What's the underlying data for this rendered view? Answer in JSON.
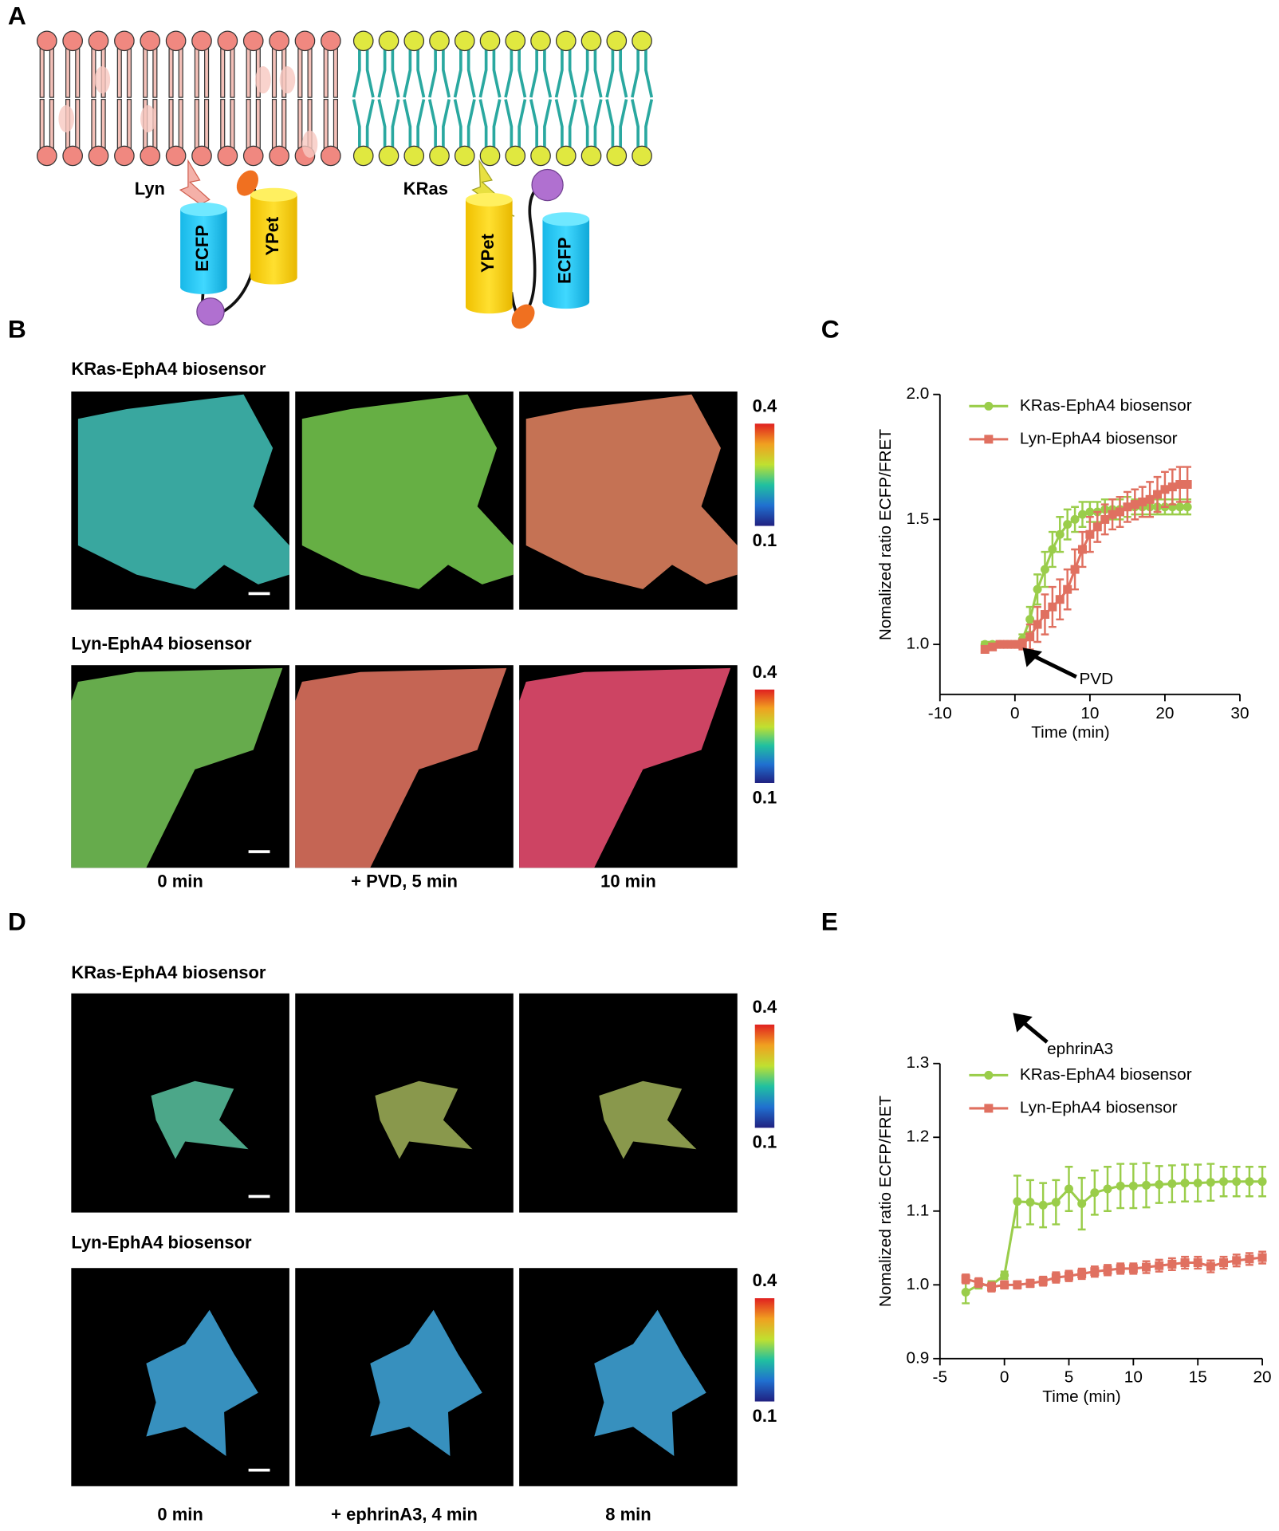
{
  "panel_labels": [
    "A",
    "B",
    "C",
    "D",
    "E"
  ],
  "diagram": {
    "anchors": [
      "Lyn",
      "KRas"
    ],
    "proteins": [
      "ECFP",
      "YPet",
      "YPet",
      "ECFP"
    ]
  },
  "imaging": [
    {
      "rows": [
        {
          "title": "KRas-EphA4 biosensor",
          "scale_max": "0.4",
          "scale_min": "0.1"
        },
        {
          "title": "Lyn-EphA4 biosensor",
          "scale_max": "0.4",
          "scale_min": "0.1"
        }
      ],
      "times": [
        "0 min",
        "+ PVD, 5 min",
        "10 min"
      ]
    },
    {
      "rows": [
        {
          "title": "KRas-EphA4 biosensor",
          "scale_max": "0.4",
          "scale_min": "0.1"
        },
        {
          "title": "Lyn-EphA4 biosensor",
          "scale_max": "0.4",
          "scale_min": "0.1"
        }
      ],
      "times": [
        "0 min",
        "+ ephrinA3, 4 min",
        "8 min"
      ]
    }
  ],
  "chart_data": [
    {
      "type": "line",
      "x_label": "Time (min)",
      "y_label": "Nomalized ratio ECFP/FRET",
      "annotation": "PVD",
      "legend": "upper left",
      "x": [
        -4,
        -3,
        -2,
        -1,
        0,
        1,
        2,
        3,
        4,
        5,
        6,
        7,
        8,
        9,
        10,
        11,
        12,
        13,
        14,
        15,
        16,
        17,
        18,
        19,
        20,
        21,
        22,
        23
      ],
      "series": [
        {
          "name": "KRas-EphA4 biosensor",
          "color": "#9acd4a",
          "marker": "circle",
          "values": [
            1.0,
            1.0,
            1.0,
            1.0,
            1.0,
            1.02,
            1.1,
            1.22,
            1.3,
            1.38,
            1.44,
            1.48,
            1.5,
            1.52,
            1.53,
            1.53,
            1.54,
            1.54,
            1.54,
            1.55,
            1.55,
            1.55,
            1.55,
            1.55,
            1.55,
            1.55,
            1.55,
            1.55
          ],
          "errors": [
            0.01,
            0.01,
            0.01,
            0.01,
            0.01,
            0.02,
            0.05,
            0.06,
            0.07,
            0.07,
            0.07,
            0.06,
            0.05,
            0.05,
            0.04,
            0.04,
            0.04,
            0.04,
            0.04,
            0.04,
            0.03,
            0.03,
            0.03,
            0.03,
            0.03,
            0.03,
            0.03,
            0.03
          ]
        },
        {
          "name": "Lyn-EphA4 biosensor",
          "color": "#e07060",
          "marker": "square",
          "values": [
            0.98,
            0.99,
            1.0,
            1.0,
            1.0,
            1.0,
            1.03,
            1.08,
            1.12,
            1.15,
            1.18,
            1.22,
            1.3,
            1.38,
            1.44,
            1.47,
            1.5,
            1.52,
            1.53,
            1.55,
            1.56,
            1.57,
            1.58,
            1.6,
            1.62,
            1.63,
            1.64,
            1.64
          ],
          "errors": [
            0.01,
            0.01,
            0.01,
            0.01,
            0.01,
            0.02,
            0.05,
            0.07,
            0.08,
            0.08,
            0.08,
            0.08,
            0.08,
            0.07,
            0.07,
            0.06,
            0.06,
            0.06,
            0.06,
            0.06,
            0.06,
            0.06,
            0.07,
            0.07,
            0.07,
            0.07,
            0.07,
            0.07
          ]
        }
      ],
      "xlim": [
        -10,
        30
      ],
      "ylim": [
        0.8,
        2.0
      ],
      "xticks": [
        -10,
        0,
        10,
        20,
        30
      ],
      "yticks": [
        {
          "value": 1.0,
          "label": "1.0"
        },
        {
          "value": 1.5,
          "label": "1.5"
        },
        {
          "value": 2.0,
          "label": "2.0"
        }
      ]
    },
    {
      "type": "line",
      "x_label": "Time (min)",
      "y_label": "Nomalized ratio ECFP/FRET",
      "annotation": "ephrinA3",
      "legend": "upper left",
      "x": [
        -3,
        -2,
        -1,
        0,
        1,
        2,
        3,
        4,
        5,
        6,
        7,
        8,
        9,
        10,
        11,
        12,
        13,
        14,
        15,
        16,
        17,
        18,
        19,
        20
      ],
      "series": [
        {
          "name": "KRas-EphA4 biosensor",
          "color": "#9acd4a",
          "marker": "circle",
          "values": [
            0.99,
            1.0,
            1.0,
            1.013,
            1.113,
            1.112,
            1.108,
            1.112,
            1.13,
            1.11,
            1.125,
            1.13,
            1.134,
            1.134,
            1.135,
            1.136,
            1.137,
            1.138,
            1.138,
            1.139,
            1.14,
            1.14,
            1.14,
            1.14
          ],
          "errors": [
            0.015,
            0.005,
            0.005,
            0.005,
            0.035,
            0.03,
            0.03,
            0.03,
            0.03,
            0.035,
            0.03,
            0.03,
            0.03,
            0.03,
            0.03,
            0.025,
            0.025,
            0.025,
            0.025,
            0.025,
            0.02,
            0.02,
            0.02,
            0.02
          ]
        },
        {
          "name": "Lyn-EphA4 biosensor",
          "color": "#e07060",
          "marker": "square",
          "values": [
            1.008,
            1.003,
            0.997,
            1.0,
            1.0,
            1.002,
            1.005,
            1.01,
            1.012,
            1.015,
            1.018,
            1.02,
            1.022,
            1.022,
            1.024,
            1.026,
            1.028,
            1.03,
            1.03,
            1.025,
            1.03,
            1.033,
            1.035,
            1.037
          ],
          "errors": [
            0.006,
            0.006,
            0.006,
            0.005,
            0.005,
            0.005,
            0.006,
            0.007,
            0.007,
            0.007,
            0.007,
            0.007,
            0.007,
            0.007,
            0.008,
            0.008,
            0.008,
            0.008,
            0.008,
            0.008,
            0.008,
            0.008,
            0.008,
            0.008
          ]
        }
      ],
      "xlim": [
        -5,
        20
      ],
      "ylim": [
        0.9,
        1.3
      ],
      "xticks": [
        -5,
        0,
        5,
        10,
        15,
        20
      ],
      "yticks": [
        {
          "value": 0.9,
          "label": "0.9"
        },
        {
          "value": 1.0,
          "label": "1.0"
        },
        {
          "value": 1.1,
          "label": "1.1"
        },
        {
          "value": 1.2,
          "label": "1.2"
        },
        {
          "value": 1.3,
          "label": "1.3"
        }
      ]
    }
  ]
}
